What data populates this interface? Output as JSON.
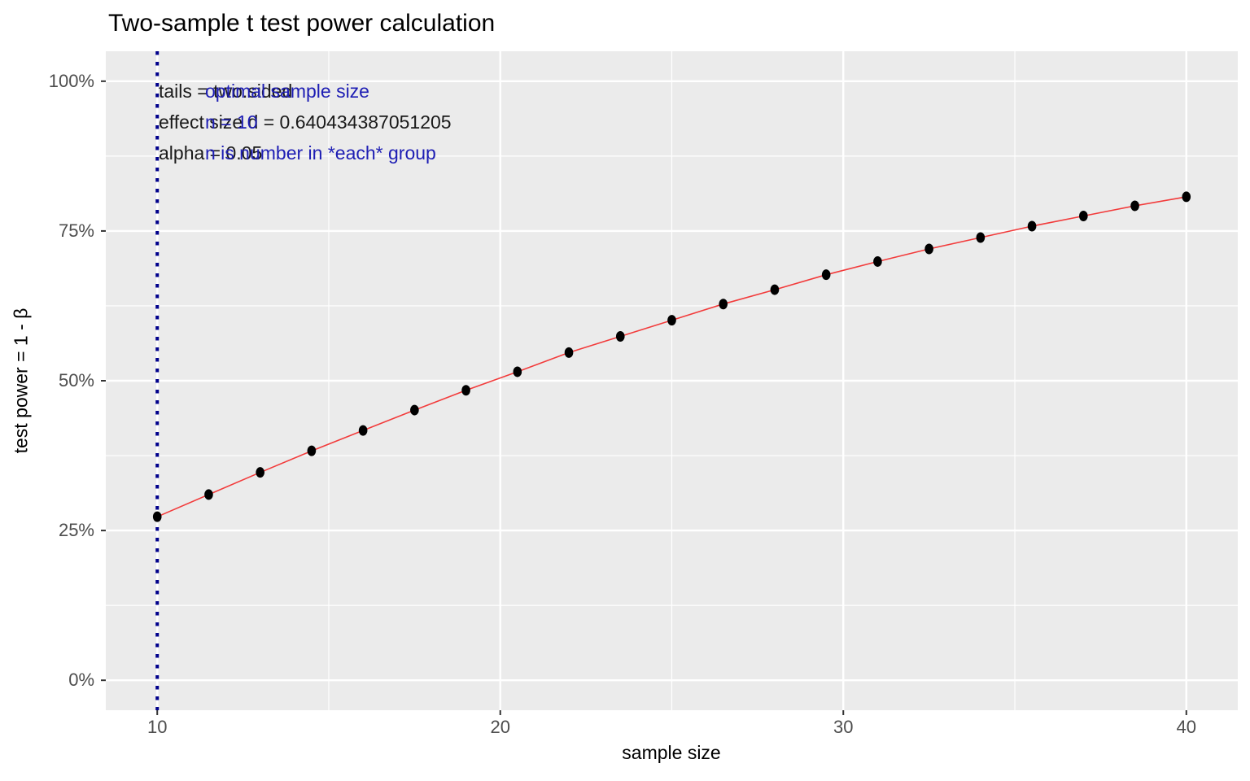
{
  "title": "Two-sample t test power calculation",
  "colors": {
    "panel_bg": "#EBEBEB",
    "grid": "#FFFFFF",
    "tick_label": "#4D4D4D",
    "tick_mark": "#333333",
    "power_line": "#F23B3B",
    "point": "#000000",
    "optimal_vline": "#00008B",
    "note_blue": "#1E1EB4",
    "note_black": "#1A1A1A"
  },
  "annotations": {
    "params": [
      "tails = two.sided",
      "effect size d = 0.640434387051205",
      "alpha = 0.05"
    ],
    "optimal": [
      "optimal sample size",
      "n = 10",
      "n is number in *each* group"
    ]
  },
  "chart_data": {
    "type": "line",
    "title": "Two-sample t test power calculation",
    "xlabel": "sample size",
    "ylabel": "test power = 1 - β",
    "legend_position": "none",
    "grid": "major and minor, white on gray panel",
    "xlim": [
      8.5,
      41.5
    ],
    "ylim_pct": [
      -5,
      105
    ],
    "x_ticks": [
      10,
      20,
      30,
      40
    ],
    "x_minor_ticks": [
      15,
      25,
      35
    ],
    "y_ticks": [
      {
        "value": 0,
        "label": "0%"
      },
      {
        "value": 25,
        "label": "25%"
      },
      {
        "value": 50,
        "label": "50%"
      },
      {
        "value": 75,
        "label": "75%"
      },
      {
        "value": 100,
        "label": "100%"
      }
    ],
    "y_minor_ticks": [
      12.5,
      37.5,
      62.5,
      87.5
    ],
    "vline": {
      "x": 10,
      "linetype": "dotted",
      "meaning": "optimal sample size n = 10"
    },
    "series": [
      {
        "name": "test power vs sample size (two-sample t, d = 0.640434387051205, alpha = 0.05, two.sided)",
        "x": [
          10,
          11.5,
          13,
          14.5,
          16,
          17.5,
          19,
          20.5,
          22,
          23.5,
          25,
          26.5,
          28,
          29.5,
          31,
          32.5,
          34,
          35.5,
          37,
          38.5,
          40
        ],
        "y_pct": [
          27.3,
          31.0,
          34.7,
          38.3,
          41.7,
          45.1,
          48.4,
          51.5,
          54.7,
          57.4,
          60.1,
          62.8,
          65.2,
          67.7,
          69.9,
          72.0,
          73.9,
          75.8,
          77.5,
          79.2,
          80.7
        ]
      }
    ]
  }
}
